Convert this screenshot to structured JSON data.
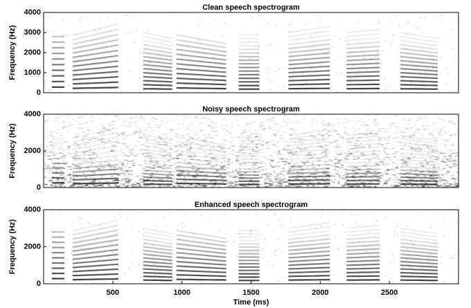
{
  "chart_data": [
    {
      "type": "spectrogram",
      "title": "Clean speech spectrogram",
      "ylabel": "Frequency (Hz)",
      "xlim": [
        0,
        3000
      ],
      "ylim": [
        0,
        4000
      ],
      "yticks": [
        0,
        1000,
        2000,
        3000,
        4000
      ],
      "noise": false
    },
    {
      "type": "spectrogram",
      "title": "Noisy speech spectrogram",
      "ylabel": "Frequency (Hz)",
      "xlim": [
        0,
        3000
      ],
      "ylim": [
        0,
        4000
      ],
      "yticks": [
        0,
        2000,
        4000
      ],
      "noise": true
    },
    {
      "type": "spectrogram",
      "title": "Enhanced speech spectrogram",
      "ylabel": "Frequency (Hz)",
      "xlabel": "Time (ms)",
      "xlim": [
        0,
        3000
      ],
      "ylim": [
        0,
        4000
      ],
      "yticks": [
        0,
        2000,
        4000
      ],
      "xticks": [
        500,
        1000,
        1500,
        2000,
        2500
      ],
      "noise": false
    }
  ]
}
